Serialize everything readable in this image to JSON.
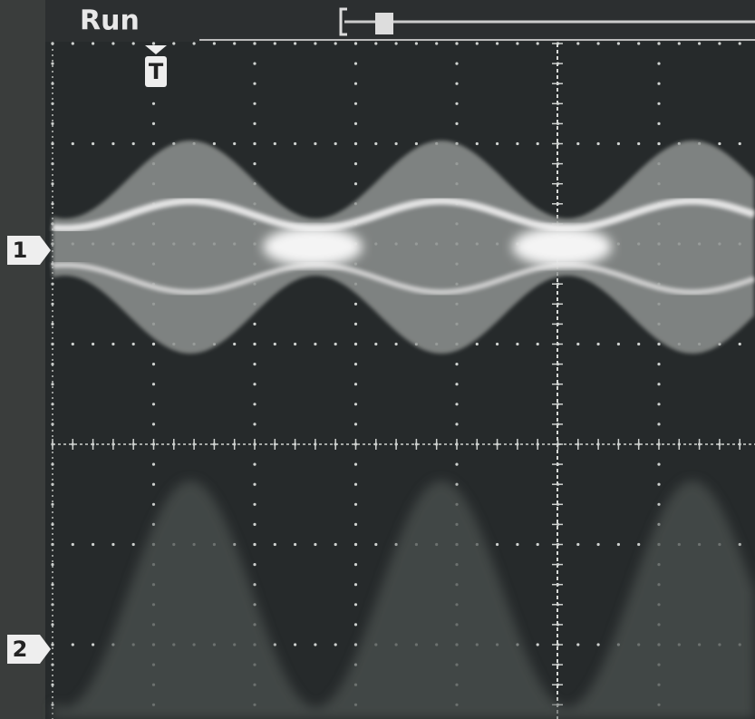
{
  "header": {
    "status": "Run",
    "trigger_marker": "T"
  },
  "channels": [
    {
      "label": "1"
    },
    {
      "label": "2"
    }
  ]
}
